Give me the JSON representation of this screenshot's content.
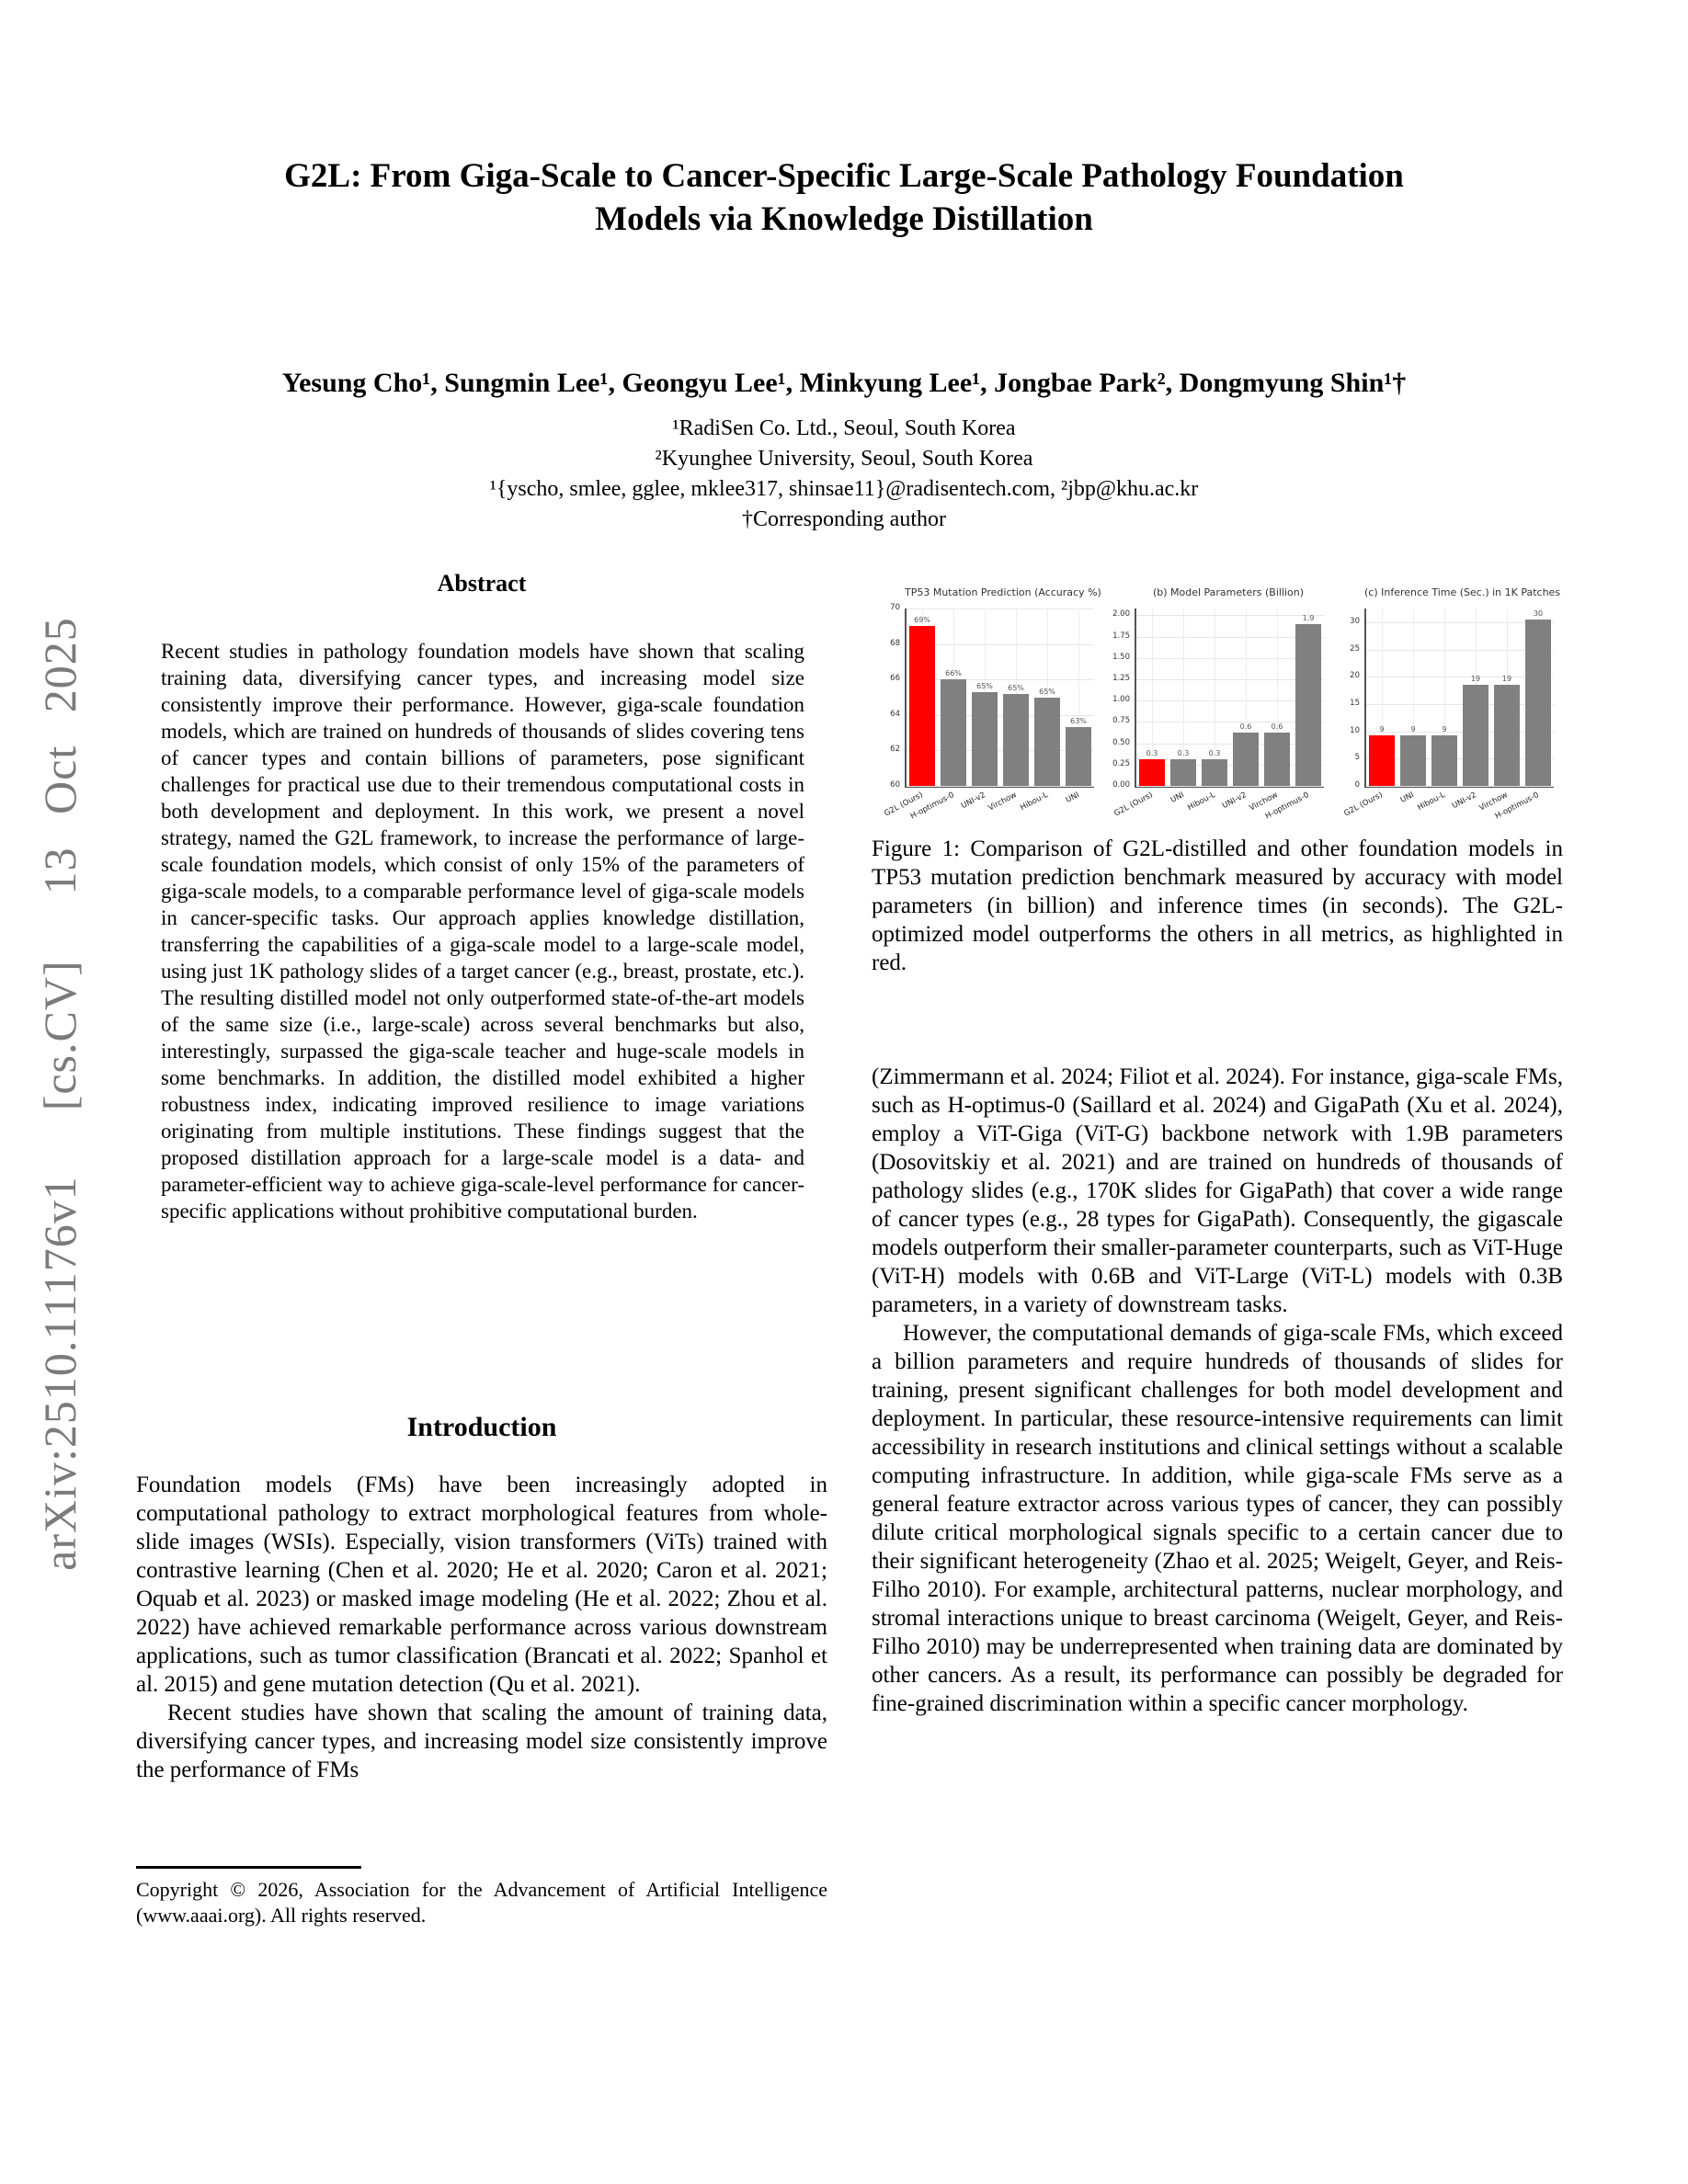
{
  "arxiv_watermark": "arXiv:2510.11176v1  [cs.CV]  13 Oct 2025",
  "title": {
    "line1": "G2L: From Giga-Scale to Cancer-Specific Large-Scale Pathology Foundation",
    "line2": "Models via Knowledge Distillation"
  },
  "authors": "Yesung Cho¹, Sungmin Lee¹, Geongyu Lee¹, Minkyung Lee¹, Jongbae Park², Dongmyung Shin¹†",
  "affiliations": [
    "¹RadiSen Co. Ltd., Seoul, South Korea",
    "²Kyunghee University, Seoul, South Korea",
    "¹{yscho, smlee, gglee, mklee317, shinsae11}@radisentech.com, ²jbp@khu.ac.kr",
    "†Corresponding author"
  ],
  "abstract": {
    "heading": "Abstract",
    "text": "Recent studies in pathology foundation models have shown that scaling training data, diversifying cancer types, and increasing model size consistently improve their performance. However, giga-scale foundation models, which are trained on hundreds of thousands of slides covering tens of cancer types and contain billions of parameters, pose significant challenges for practical use due to their tremendous computational costs in both development and deployment. In this work, we present a novel strategy, named the G2L framework, to increase the performance of large-scale foundation models, which consist of only 15% of the parameters of giga-scale models, to a comparable performance level of giga-scale models in cancer-specific tasks. Our approach applies knowledge distillation, transferring the capabilities of a giga-scale model to a large-scale model, using just 1K pathology slides of a target cancer (e.g., breast, prostate, etc.). The resulting distilled model not only outperformed state-of-the-art models of the same size (i.e., large-scale) across several benchmarks but also, interestingly, surpassed the giga-scale teacher and huge-scale models in some benchmarks. In addition, the distilled model exhibited a higher robustness index, indicating improved resilience to image variations originating from multiple institutions. These findings suggest that the proposed distillation approach for a large-scale model is a data- and parameter-efficient way to achieve giga-scale-level performance for cancer-specific applications without prohibitive computational burden."
  },
  "introduction": {
    "heading": "Introduction",
    "para1": "Foundation models (FMs) have been increasingly adopted in computational pathology to extract morphological features from whole-slide images (WSIs). Especially, vision transformers (ViTs) trained with contrastive learning (Chen et al. 2020; He et al. 2020; Caron et al. 2021; Oquab et al. 2023) or masked image modeling (He et al. 2022; Zhou et al. 2022) have achieved remarkable performance across various downstream applications, such as tumor classification (Brancati et al. 2022; Spanhol et al. 2015) and gene mutation detection (Qu et al. 2021).",
    "para2": "Recent studies have shown that scaling the amount of training data, diversifying cancer types, and increasing model size consistently improve the performance of FMs"
  },
  "copyright_footnote": "Copyright © 2026, Association for the Advancement of Artificial Intelligence (www.aaai.org). All rights reserved.",
  "figure": {
    "caption": "Figure 1: Comparison of G2L-distilled and other foundation models in TP53 mutation prediction benchmark measured by accuracy with model parameters (in billion) and inference times (in seconds). The G2L-optimized model outperforms the others in all metrics, as highlighted in red."
  },
  "right_column": {
    "para1": "(Zimmermann et al. 2024; Filiot et al. 2024). For instance, giga-scale FMs, such as H-optimus-0 (Saillard et al. 2024) and GigaPath (Xu et al. 2024), employ a ViT-Giga (ViT-G) backbone network with 1.9B parameters (Dosovitskiy et al. 2021) and are trained on hundreds of thousands of pathology slides (e.g., 170K slides for GigaPath) that cover a wide range of cancer types (e.g., 28 types for GigaPath). Consequently, the gigascale models outperform their smaller-parameter counterparts, such as ViT-Huge (ViT-H) models with 0.6B and ViT-Large (ViT-L) models with 0.3B parameters, in a variety of downstream tasks.",
    "para2": "However, the computational demands of giga-scale FMs, which exceed a billion parameters and require hundreds of thousands of slides for training, present significant challenges for both model development and deployment. In particular, these resource-intensive requirements can limit accessibility in research institutions and clinical settings without a scalable computing infrastructure. In addition, while giga-scale FMs serve as a general feature extractor across various types of cancer, they can possibly dilute critical morphological signals specific to a certain cancer due to their significant heterogeneity (Zhao et al. 2025; Weigelt, Geyer, and Reis-Filho 2010). For example, architectural patterns, nuclear morphology, and stromal interactions unique to breast carcinoma (Weigelt, Geyer, and Reis-Filho 2010) may be underrepresented when training data are dominated by other cancers. As a result, its performance can possibly be degraded for fine-grained discrimination within a specific cancer morphology."
  },
  "colors": {
    "highlight": "#ff0000",
    "bar_gray": "#808080"
  },
  "chart_data": [
    {
      "type": "bar",
      "title": "TP53 Mutation Prediction (Accuracy %)",
      "categories": [
        "G2L (Ours)",
        "H-optimus-0",
        "UNI-v2",
        "Virchow",
        "Hibou-L",
        "UNI"
      ],
      "values": [
        69.0,
        66.0,
        65.3,
        65.2,
        65.0,
        63.3
      ],
      "bar_labels": [
        "69%",
        "66%",
        "65%",
        "65%",
        "65%",
        "63%"
      ],
      "ylim": [
        60,
        70
      ],
      "yticks": [
        60,
        62,
        64,
        66,
        68,
        70
      ],
      "ytick_labels": [
        "60",
        "62",
        "64",
        "66",
        "68",
        "70"
      ],
      "highlight_index": 0,
      "grid": true,
      "legend": "none"
    },
    {
      "type": "bar",
      "title": "(b) Model Parameters (Billion)",
      "categories": [
        "G2L (Ours)",
        "UNI",
        "Hibou-L",
        "UNI-v2",
        "Virchow",
        "H-optimus-0"
      ],
      "values": [
        0.31,
        0.31,
        0.31,
        0.63,
        0.63,
        1.9
      ],
      "bar_labels": [
        "0.3",
        "0.3",
        "0.3",
        "0.6",
        "0.6",
        "1.9"
      ],
      "ylim": [
        0,
        2.08
      ],
      "yticks": [
        0.0,
        0.25,
        0.5,
        0.75,
        1.0,
        1.25,
        1.5,
        1.75,
        2.0
      ],
      "ytick_labels": [
        "0.00",
        "0.25",
        "0.50",
        "0.75",
        "1.00",
        "1.25",
        "1.50",
        "1.75",
        "2.00"
      ],
      "highlight_index": 0,
      "grid": true,
      "legend": "none"
    },
    {
      "type": "bar",
      "title": "(c) Inference Time (Sec.) in 1K Patches",
      "categories": [
        "G2L (Ours)",
        "UNI",
        "Hibou-L",
        "UNI-v2",
        "Virchow",
        "H-optimus-0"
      ],
      "values": [
        9.2,
        9.2,
        9.2,
        18.6,
        18.6,
        30.4
      ],
      "bar_labels": [
        "9",
        "9",
        "9",
        "19",
        "19",
        "30"
      ],
      "ylim": [
        0,
        32.5
      ],
      "yticks": [
        0,
        5,
        10,
        15,
        20,
        25,
        30
      ],
      "ytick_labels": [
        "0",
        "5",
        "10",
        "15",
        "20",
        "25",
        "30"
      ],
      "highlight_index": 0,
      "grid": true,
      "legend": "none"
    }
  ]
}
